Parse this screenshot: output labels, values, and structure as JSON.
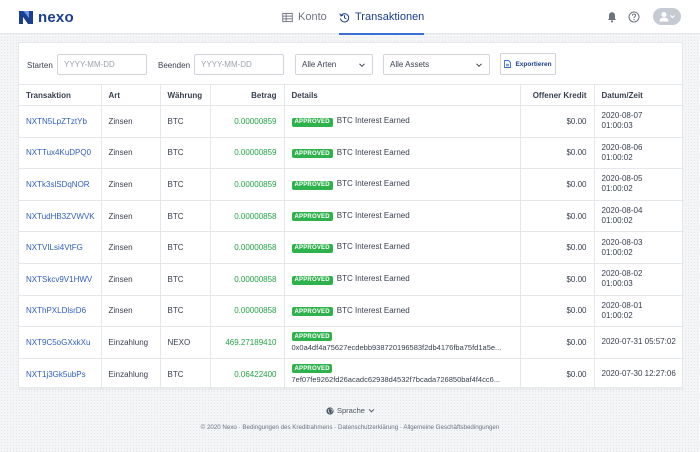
{
  "brand": {
    "name": "nexo"
  },
  "nav": {
    "tabs": [
      {
        "label": "Konto",
        "icon": "table-icon",
        "active": false
      },
      {
        "label": "Transaktionen",
        "icon": "history-icon",
        "active": true
      }
    ]
  },
  "filters": {
    "start_label": "Starten",
    "start_placeholder": "YYYY-MM-DD",
    "end_label": "Beenden",
    "end_placeholder": "YYYY-MM-DD",
    "type_select": "Alle Arten",
    "asset_select": "Alle Assets",
    "export_label": "Exportieren"
  },
  "table": {
    "headers": {
      "tx": "Transaktion",
      "art": "Art",
      "currency": "Währung",
      "amount": "Betrag",
      "details": "Details",
      "credit": "Offener Kredit",
      "date": "Datum/Zeit"
    },
    "rows": [
      {
        "tx": "NXTN5LpZTztYb",
        "art": "Zinsen",
        "currency": "BTC",
        "amount": "0.00000859",
        "status": "APPROVED",
        "details": "BTC Interest Earned",
        "credit": "$0.00",
        "date": "2020-08-07",
        "time": "01:00:03"
      },
      {
        "tx": "NXTTux4KuDPQ0",
        "art": "Zinsen",
        "currency": "BTC",
        "amount": "0.00000859",
        "status": "APPROVED",
        "details": "BTC Interest Earned",
        "credit": "$0.00",
        "date": "2020-08-06",
        "time": "01:00:02"
      },
      {
        "tx": "NXTk3slSDqNOR",
        "art": "Zinsen",
        "currency": "BTC",
        "amount": "0.00000859",
        "status": "APPROVED",
        "details": "BTC Interest Earned",
        "credit": "$0.00",
        "date": "2020-08-05",
        "time": "01:00:02"
      },
      {
        "tx": "NXTudHB3ZVWVK",
        "art": "Zinsen",
        "currency": "BTC",
        "amount": "0.00000858",
        "status": "APPROVED",
        "details": "BTC Interest Earned",
        "credit": "$0.00",
        "date": "2020-08-04",
        "time": "01:00:02"
      },
      {
        "tx": "NXTVILsi4VtFG",
        "art": "Zinsen",
        "currency": "BTC",
        "amount": "0.00000858",
        "status": "APPROVED",
        "details": "BTC Interest Earned",
        "credit": "$0.00",
        "date": "2020-08-03",
        "time": "01:00:02"
      },
      {
        "tx": "NXTSkcv9V1HWV",
        "art": "Zinsen",
        "currency": "BTC",
        "amount": "0.00000858",
        "status": "APPROVED",
        "details": "BTC Interest Earned",
        "credit": "$0.00",
        "date": "2020-08-02",
        "time": "01:00:03"
      },
      {
        "tx": "NXThPXLDlsrD6",
        "art": "Zinsen",
        "currency": "BTC",
        "amount": "0.00000858",
        "status": "APPROVED",
        "details": "BTC Interest Earned",
        "credit": "$0.00",
        "date": "2020-08-01",
        "time": "01:00:02"
      },
      {
        "tx": "NXT9C5oGXxkXu",
        "art": "Einzahlung",
        "currency": "NEXO",
        "amount": "469.27189410",
        "status": "APPROVED",
        "details": "0x0a4df4a75627ecdebb938720196583f2db4176fba75fd1a5e...",
        "credit": "$0.00",
        "date": "2020-07-31 05:57:02",
        "time": ""
      },
      {
        "tx": "NXT1j3Gk5ubPs",
        "art": "Einzahlung",
        "currency": "BTC",
        "amount": "0.06422400",
        "status": "APPROVED",
        "details": "7ef07fe9262fd26acadc62938d4532f7bcada726850baf4f4cc6...",
        "credit": "$0.00",
        "date": "2020-07-30 12:27:06",
        "time": ""
      }
    ]
  },
  "footer": {
    "language": "Sprache",
    "links": "© 2020 Nexo  ·  Bedingungen des Kreditrahmens  ·  Datenschutzerklärung  ·  Allgemeine Geschäftsbedingungen"
  },
  "colors": {
    "brand": "#1b3f8f",
    "accent": "#3b6fd8",
    "positive": "#22a447",
    "badge": "#2fb24c",
    "link": "#2f5fc4"
  }
}
